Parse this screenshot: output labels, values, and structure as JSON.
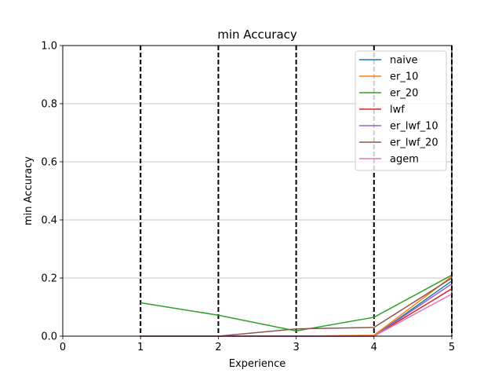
{
  "chart_data": {
    "type": "line",
    "title": "min Accuracy",
    "xlabel": "Experience",
    "ylabel": "min Accuracy",
    "xlim": [
      0,
      5
    ],
    "ylim": [
      0,
      1.0
    ],
    "xticks": [
      "0",
      "1",
      "2",
      "3",
      "4",
      "5"
    ],
    "yticks": [
      "0.0",
      "0.2",
      "0.4",
      "0.6",
      "0.8",
      "1.0"
    ],
    "ytick_values": [
      0,
      0.2,
      0.4,
      0.6,
      0.8,
      1.0
    ],
    "grid": "horizontal",
    "legend_position": "upper right",
    "vlines": [
      1,
      2,
      3,
      4,
      5
    ],
    "x": [
      1,
      2,
      3,
      4,
      5
    ],
    "series": [
      {
        "name": "naive",
        "color": "#1f77b4",
        "values": [
          0.0,
          0.0,
          0.0,
          0.0,
          0.19
        ]
      },
      {
        "name": "er_10",
        "color": "#ff7f0e",
        "values": [
          0.0,
          0.0,
          0.0,
          0.003,
          0.205
        ]
      },
      {
        "name": "er_20",
        "color": "#2ca02c",
        "values": [
          0.115,
          0.072,
          0.018,
          0.065,
          0.21
        ]
      },
      {
        "name": "lwf",
        "color": "#d62728",
        "values": [
          0.0,
          0.0,
          0.0,
          0.0,
          0.163
        ]
      },
      {
        "name": "er_lwf_10",
        "color": "#9467bd",
        "values": [
          0.0,
          0.0,
          0.0,
          0.0,
          0.18
        ]
      },
      {
        "name": "er_lwf_20",
        "color": "#8c564b",
        "values": [
          0.0,
          0.0,
          0.025,
          0.03,
          0.2
        ]
      },
      {
        "name": "agem",
        "color": "#e377c2",
        "values": [
          0.0,
          0.0,
          0.0,
          0.0,
          0.145
        ]
      }
    ]
  }
}
